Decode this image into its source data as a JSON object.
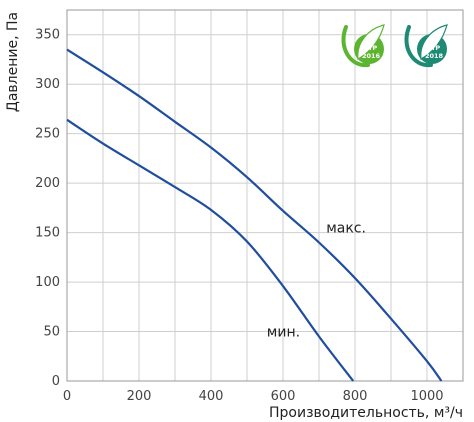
{
  "chart_data": {
    "type": "line",
    "xlabel": "Производительность, м³/ч",
    "ylabel": "Давление, Па",
    "xlim": [
      0,
      1100
    ],
    "ylim": [
      0,
      375
    ],
    "xticks": [
      0,
      200,
      400,
      600,
      800,
      1000
    ],
    "yticks": [
      0,
      50,
      100,
      150,
      200,
      250,
      300,
      350
    ],
    "grid": true,
    "series": [
      {
        "name": "макс.",
        "color": "#1f4e9e",
        "points": [
          [
            0,
            335
          ],
          [
            100,
            312
          ],
          [
            200,
            288
          ],
          [
            300,
            262
          ],
          [
            400,
            236
          ],
          [
            500,
            206
          ],
          [
            600,
            172
          ],
          [
            700,
            140
          ],
          [
            800,
            104
          ],
          [
            900,
            63
          ],
          [
            1000,
            20
          ],
          [
            1040,
            0
          ]
        ]
      },
      {
        "name": "мин.",
        "color": "#1f4e9e",
        "points": [
          [
            0,
            264
          ],
          [
            100,
            240
          ],
          [
            200,
            218
          ],
          [
            300,
            196
          ],
          [
            400,
            173
          ],
          [
            500,
            141
          ],
          [
            600,
            96
          ],
          [
            700,
            45
          ],
          [
            795,
            0
          ]
        ]
      }
    ],
    "badges": [
      {
        "line1": "ErP",
        "line2": "2016",
        "color": "#5cb531"
      },
      {
        "line1": "ErP",
        "line2": "2018",
        "color": "#1e8a74"
      }
    ]
  }
}
